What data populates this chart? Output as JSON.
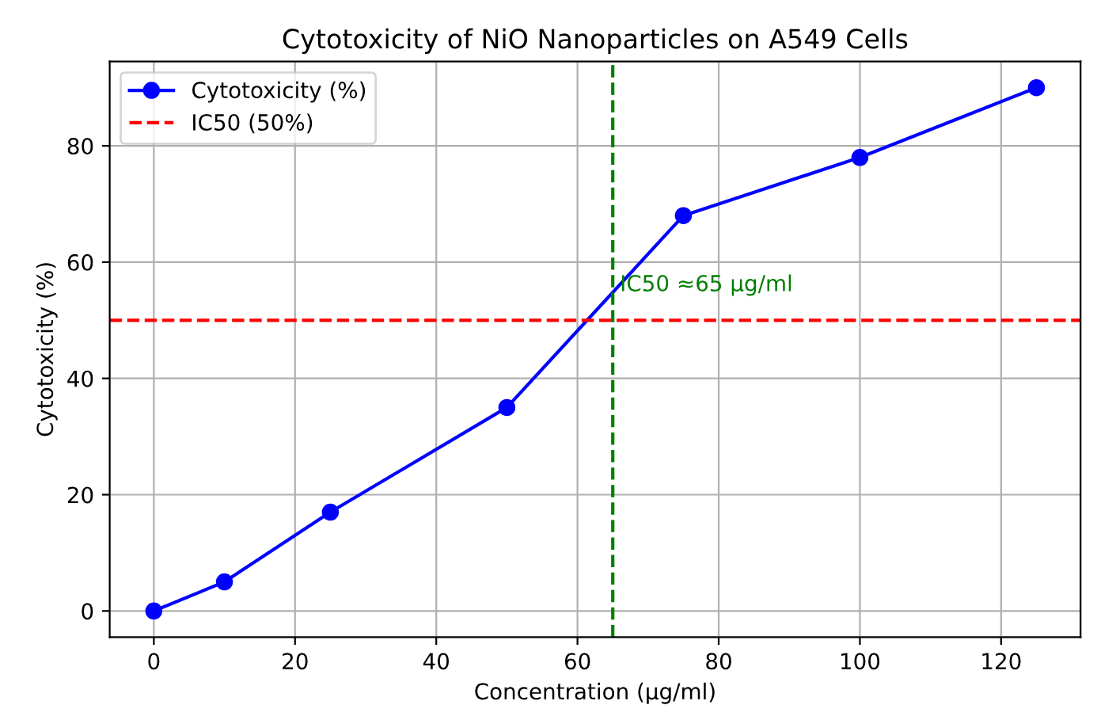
{
  "chart_data": {
    "type": "line",
    "title": "Cytotoxicity of NiO Nanoparticles on A549 Cells",
    "xlabel": "Concentration (µg/ml)",
    "ylabel": "Cytotoxicity (%)",
    "x": [
      0,
      10,
      25,
      50,
      75,
      100,
      125
    ],
    "series": [
      {
        "name": "Cytotoxicity (%)",
        "color": "#0000ff",
        "values": [
          0,
          5,
          17,
          35,
          68,
          78,
          90
        ]
      }
    ],
    "xlim": [
      -6.25,
      131.25
    ],
    "xticks": [
      0,
      20,
      40,
      60,
      80,
      100,
      120
    ],
    "ylim": [
      -4.5,
      94.5
    ],
    "yticks": [
      0,
      20,
      40,
      60,
      80
    ],
    "ref_lines": [
      {
        "axis": "y",
        "value": 50,
        "label": "IC50 (50%)",
        "color": "#ff0000",
        "line_style": "dashed"
      },
      {
        "axis": "x",
        "value": 65,
        "color": "#008000",
        "line_style": "dashed"
      }
    ],
    "annotations": [
      {
        "text": "IC50 ≈65 µg/ml",
        "x": 66,
        "y": 55
      }
    ],
    "grid": true,
    "legend": "top left",
    "marker": "circle",
    "line_style": "solid"
  }
}
